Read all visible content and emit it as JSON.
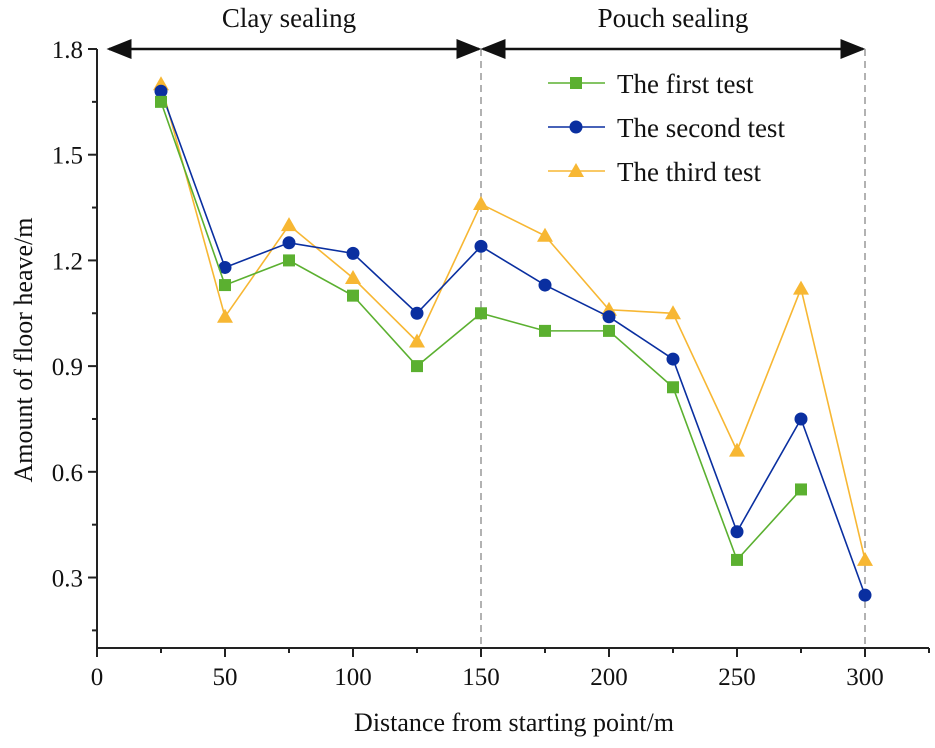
{
  "chart_data": {
    "type": "line",
    "title": "",
    "xlabel": "Distance from starting point/m",
    "ylabel": "Amount of floor heave/m",
    "xlim": [
      0,
      325
    ],
    "ylim": [
      0.1,
      1.8
    ],
    "xticks": [
      0,
      50,
      100,
      150,
      200,
      250,
      300
    ],
    "xtick_labels": [
      "0",
      "50",
      "100",
      "150",
      "200",
      "250",
      "300"
    ],
    "yticks": [
      0.3,
      0.6,
      0.9,
      1.2,
      1.5,
      1.8
    ],
    "ytick_labels": [
      "0.3",
      "0.6",
      "0.9",
      "1.2",
      "1.5",
      "1.8"
    ],
    "grid": false,
    "legend_position": "top-right",
    "regions": [
      {
        "label": "Clay sealing",
        "from": 0,
        "to": 150
      },
      {
        "label": "Pouch sealing",
        "from": 150,
        "to": 300
      }
    ],
    "series": [
      {
        "name": "The first test",
        "color": "#5bb030",
        "marker": "square",
        "x": [
          25,
          50,
          75,
          100,
          125,
          150,
          175,
          200,
          225,
          250,
          275
        ],
        "values": [
          1.65,
          1.13,
          1.2,
          1.1,
          0.9,
          1.05,
          1.0,
          1.0,
          0.84,
          0.35,
          0.55
        ]
      },
      {
        "name": "The second test",
        "color": "#0a2fa0",
        "marker": "circle",
        "x": [
          25,
          50,
          75,
          100,
          125,
          150,
          175,
          200,
          225,
          250,
          275,
          300
        ],
        "values": [
          1.68,
          1.18,
          1.25,
          1.22,
          1.05,
          1.24,
          1.13,
          1.04,
          0.92,
          0.43,
          0.75,
          0.25
        ]
      },
      {
        "name": "The third test",
        "color": "#f7b733",
        "marker": "triangle",
        "x": [
          25,
          50,
          75,
          100,
          125,
          150,
          175,
          200,
          225,
          250,
          275,
          300
        ],
        "values": [
          1.7,
          1.04,
          1.3,
          1.15,
          0.97,
          1.36,
          1.27,
          1.06,
          1.05,
          0.66,
          1.12,
          0.35
        ]
      }
    ]
  }
}
